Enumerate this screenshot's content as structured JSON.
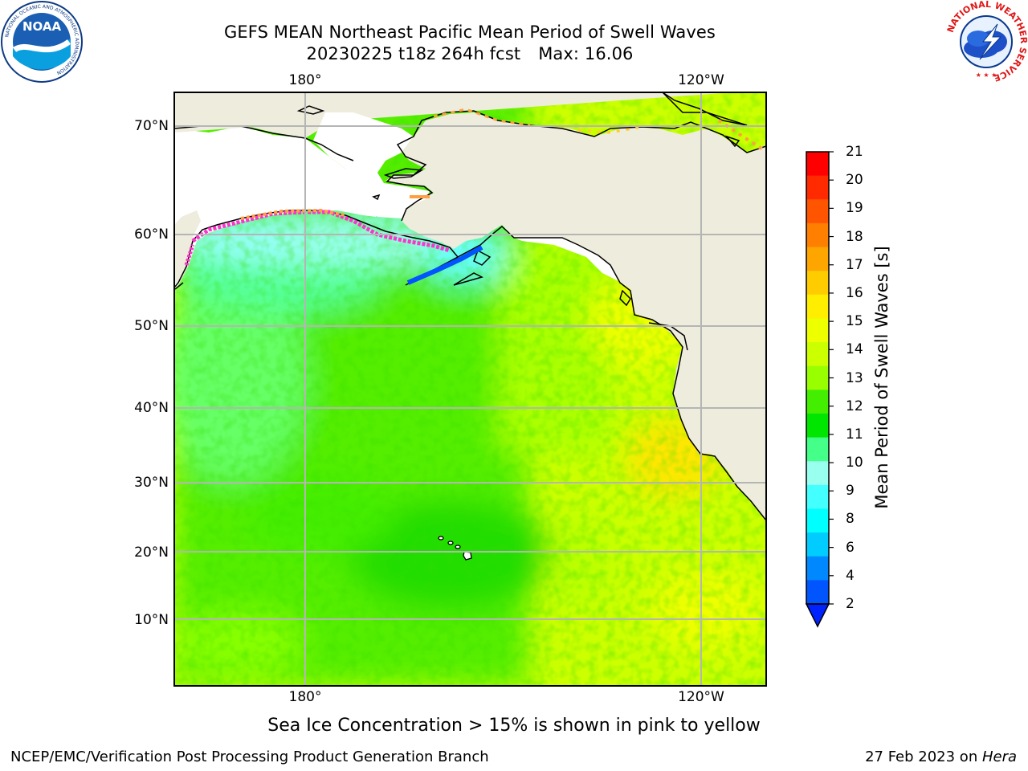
{
  "header": {
    "title_line1": "GEFS MEAN Northeast Pacific Mean Period of Swell Waves",
    "title_line2_a": "20230225 t18z 264h fcst",
    "title_line2_b": "Max: 16.06"
  },
  "logos": {
    "left": {
      "name": "NOAA",
      "ring_text": "NATIONAL OCEANIC AND ATMOSPHERIC ADMINISTRATION",
      "bottom_text": "U.S. DEPARTMENT OF COMMERCE",
      "center_text": "NOAA"
    },
    "right": {
      "name": "National Weather Service",
      "ring_text": "NATIONAL WEATHER SERVICE"
    }
  },
  "map": {
    "lat_labels": [
      "70°N",
      "60°N",
      "50°N",
      "40°N",
      "30°N",
      "20°N",
      "10°N"
    ],
    "lon_labels_top": [
      "180°",
      "120°W"
    ],
    "lon_labels_bottom": [
      "180°",
      "120°W"
    ],
    "field_max": 16.06
  },
  "colorbar": {
    "label": "Mean Period of Swell Waves [s]",
    "ticks": [
      "21",
      "20",
      "19",
      "18",
      "17",
      "16",
      "15",
      "14",
      "13",
      "12",
      "11",
      "10",
      "9",
      "8",
      "6",
      "4",
      "2"
    ],
    "colors_top_to_bottom": [
      "#ff0000",
      "#ff2a00",
      "#ff5500",
      "#ff7f00",
      "#ffa500",
      "#ffcc00",
      "#ffee00",
      "#eeff00",
      "#ccff00",
      "#99ff00",
      "#44ee00",
      "#00e600",
      "#44ff88",
      "#99ffee",
      "#44ffff",
      "#00ffff",
      "#00ccff",
      "#0088ff",
      "#0055ff"
    ],
    "extend_color": "#0022ff"
  },
  "note": "Sea Ice Concentration > 15% is shown in pink to yellow",
  "footer": {
    "left": "NCEP/EMC/Verification Post Processing Product Generation Branch",
    "right_prefix": "27 Feb 2023 on ",
    "right_machine": "Hera"
  }
}
